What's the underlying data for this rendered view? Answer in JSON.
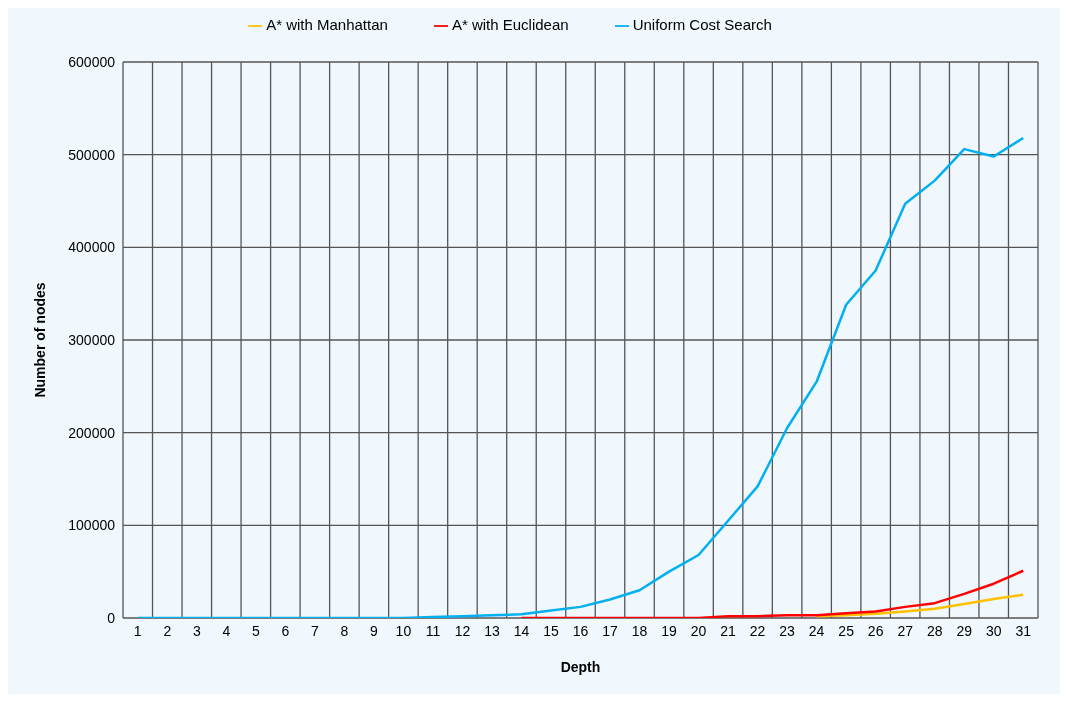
{
  "chart_data": {
    "type": "line",
    "xlabel": "Depth",
    "ylabel": "Number of nodes",
    "x": [
      1,
      2,
      3,
      4,
      5,
      6,
      7,
      8,
      9,
      10,
      11,
      12,
      13,
      14,
      15,
      16,
      17,
      18,
      19,
      20,
      21,
      22,
      23,
      24,
      25,
      26,
      27,
      28,
      29,
      30,
      31
    ],
    "xlim": [
      0.5,
      31.5
    ],
    "xticks": [
      1,
      2,
      3,
      4,
      5,
      6,
      7,
      8,
      9,
      10,
      11,
      12,
      13,
      14,
      15,
      16,
      17,
      18,
      19,
      20,
      21,
      22,
      23,
      24,
      25,
      26,
      27,
      28,
      29,
      30,
      31
    ],
    "ylim": [
      0,
      600000
    ],
    "yticks": [
      0,
      100000,
      200000,
      300000,
      400000,
      500000,
      600000
    ],
    "grid": true,
    "legend": "top",
    "marker": "none",
    "line_style": "solid",
    "series": [
      {
        "name": "A* with Manhattan",
        "color": "#ffc000",
        "values": [
          null,
          null,
          null,
          null,
          null,
          null,
          null,
          null,
          null,
          null,
          null,
          null,
          null,
          null,
          null,
          null,
          null,
          null,
          null,
          null,
          null,
          null,
          null,
          2000,
          3000,
          4500,
          7000,
          10000,
          15000,
          20500,
          25000
        ]
      },
      {
        "name": "A* with Euclidean",
        "color": "#ff0000",
        "values": [
          null,
          null,
          null,
          null,
          null,
          null,
          null,
          null,
          null,
          null,
          null,
          null,
          null,
          0,
          0,
          0,
          0,
          0,
          0,
          0,
          2000,
          2000,
          3000,
          3000,
          5000,
          7000,
          12000,
          16000,
          26000,
          37000,
          51000
        ]
      },
      {
        "name": "Uniform Cost Search",
        "color": "#00b0f0",
        "values": [
          0,
          0,
          0,
          0,
          0,
          0,
          0,
          0,
          0,
          0,
          1000,
          2000,
          3000,
          4000,
          8000,
          12000,
          20000,
          30000,
          50000,
          68000,
          105000,
          142000,
          205000,
          255000,
          338000,
          375000,
          447000,
          472000,
          506000,
          498000,
          518000
        ]
      }
    ]
  }
}
